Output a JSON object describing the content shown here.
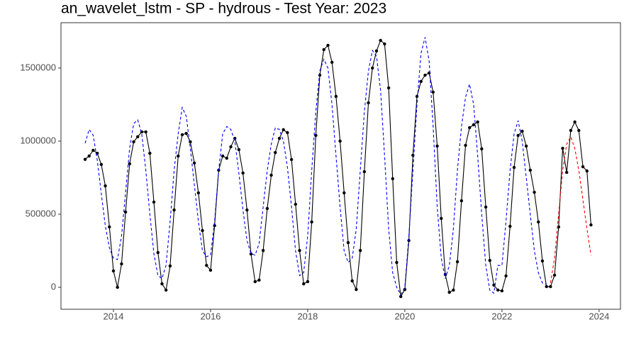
{
  "chart_data": {
    "type": "line",
    "title": "an_wavelet_lstm - SP - hydrous - Test Year: 2023",
    "xlim": [
      2012.92,
      2024.44
    ],
    "xticks": [
      2014,
      2016,
      2018,
      2020,
      2022,
      2024
    ],
    "ylim": [
      -150000,
      1810000
    ],
    "yticks": [
      0,
      500000,
      1000000,
      1500000
    ],
    "grid": false,
    "series": [
      {
        "color": "#000000",
        "dashed": false,
        "markers": true,
        "x": [
          2013.417,
          2013.5,
          2013.583,
          2013.667,
          2013.75,
          2013.833,
          2013.917,
          2014,
          2014.083,
          2014.167,
          2014.25,
          2014.333,
          2014.417,
          2014.5,
          2014.583,
          2014.667,
          2014.75,
          2014.833,
          2014.917,
          2015,
          2015.083,
          2015.167,
          2015.25,
          2015.333,
          2015.417,
          2015.5,
          2015.583,
          2015.667,
          2015.75,
          2015.833,
          2015.917,
          2016,
          2016.083,
          2016.167,
          2016.25,
          2016.333,
          2016.417,
          2016.5,
          2016.583,
          2016.667,
          2016.75,
          2016.833,
          2016.917,
          2017,
          2017.083,
          2017.167,
          2017.25,
          2017.333,
          2017.417,
          2017.5,
          2017.583,
          2017.667,
          2017.75,
          2017.833,
          2017.917,
          2018,
          2018.083,
          2018.167,
          2018.25,
          2018.333,
          2018.417,
          2018.5,
          2018.583,
          2018.667,
          2018.75,
          2018.833,
          2018.917,
          2019,
          2019.083,
          2019.167,
          2019.25,
          2019.333,
          2019.417,
          2019.5,
          2019.583,
          2019.667,
          2019.75,
          2019.833,
          2019.917,
          2020,
          2020.083,
          2020.167,
          2020.25,
          2020.333,
          2020.417,
          2020.5,
          2020.583,
          2020.667,
          2020.75,
          2020.833,
          2020.917,
          2021,
          2021.083,
          2021.167,
          2021.25,
          2021.333,
          2021.417,
          2021.5,
          2021.583,
          2021.667,
          2021.75,
          2021.833,
          2021.917,
          2022,
          2022.083,
          2022.167,
          2022.25,
          2022.333,
          2022.417,
          2022.5,
          2022.583,
          2022.667,
          2022.75,
          2022.833,
          2022.917,
          2023,
          2023.083,
          2023.167,
          2023.25,
          2023.333,
          2023.417,
          2023.5,
          2023.583,
          2023.667,
          2023.75,
          2023.833
        ],
        "values": [
          875000,
          898000,
          937000,
          917000,
          840000,
          694000,
          413000,
          112000,
          0,
          160000,
          515000,
          845000,
          995000,
          1030000,
          1063000,
          1063000,
          917000,
          583000,
          238000,
          24000,
          -19000,
          146000,
          529000,
          898000,
          1044000,
          1053000,
          995000,
          850000,
          646000,
          388000,
          150000,
          117000,
          422000,
          801000,
          898000,
          883000,
          961000,
          1019000,
          942000,
          782000,
          529000,
          228000,
          39000,
          49000,
          252000,
          539000,
          767000,
          922000,
          1019000,
          1078000,
          1058000,
          874000,
          568000,
          252000,
          24000,
          39000,
          447000,
          1039000,
          1451000,
          1626000,
          1655000,
          1539000,
          1306000,
          1000000,
          646000,
          306000,
          44000,
          -15000,
          252000,
          791000,
          1262000,
          1500000,
          1617000,
          1689000,
          1665000,
          1364000,
          743000,
          170000,
          -63000,
          -15000,
          320000,
          903000,
          1306000,
          1408000,
          1451000,
          1466000,
          1335000,
          966000,
          471000,
          87000,
          -34000,
          -19000,
          175000,
          592000,
          971000,
          1092000,
          1112000,
          1131000,
          947000,
          549000,
          184000,
          15000,
          -19000,
          -24000,
          78000,
          417000,
          820000,
          1039000,
          1068000,
          966000,
          801000,
          650000,
          447000,
          180000,
          5000,
          5000,
          83000,
          413000,
          951000,
          786000,
          1073000,
          1131000,
          1073000,
          825000,
          796000,
          427000
        ]
      },
      {
        "color": "#0000ff",
        "dashed": true,
        "markers": false,
        "x": [
          2013.417,
          2013.5,
          2013.583,
          2013.667,
          2013.75,
          2013.833,
          2013.917,
          2014,
          2014.083,
          2014.167,
          2014.25,
          2014.333,
          2014.417,
          2014.5,
          2014.583,
          2014.667,
          2014.75,
          2014.833,
          2014.917,
          2015,
          2015.083,
          2015.167,
          2015.25,
          2015.333,
          2015.417,
          2015.5,
          2015.583,
          2015.667,
          2015.75,
          2015.833,
          2015.917,
          2016,
          2016.083,
          2016.167,
          2016.25,
          2016.333,
          2016.417,
          2016.5,
          2016.583,
          2016.667,
          2016.75,
          2016.833,
          2016.917,
          2017,
          2017.083,
          2017.167,
          2017.25,
          2017.333,
          2017.417,
          2017.5,
          2017.583,
          2017.667,
          2017.75,
          2017.833,
          2017.917,
          2018,
          2018.083,
          2018.167,
          2018.25,
          2018.333,
          2018.417,
          2018.5,
          2018.583,
          2018.667,
          2018.75,
          2018.833,
          2018.917,
          2019,
          2019.083,
          2019.167,
          2019.25,
          2019.333,
          2019.417,
          2019.5,
          2019.583,
          2019.667,
          2019.75,
          2019.833,
          2019.917,
          2020,
          2020.083,
          2020.167,
          2020.25,
          2020.333,
          2020.417,
          2020.5,
          2020.583,
          2020.667,
          2020.75,
          2020.833,
          2020.917,
          2021,
          2021.083,
          2021.167,
          2021.25,
          2021.333,
          2021.417,
          2021.5,
          2021.583,
          2021.667,
          2021.75,
          2021.833,
          2021.917,
          2022,
          2022.083,
          2022.167,
          2022.25,
          2022.333,
          2022.417,
          2022.5,
          2022.583,
          2022.667,
          2022.75,
          2022.833,
          2022.917
        ],
        "values": [
          985000,
          1080000,
          1040000,
          870000,
          640000,
          420000,
          270000,
          200000,
          190000,
          350000,
          650000,
          950000,
          1120000,
          1145000,
          1050000,
          800000,
          500000,
          230000,
          80000,
          60000,
          150000,
          450000,
          800000,
          1050000,
          1230000,
          1170000,
          950000,
          700000,
          450000,
          250000,
          210000,
          220000,
          450000,
          800000,
          1050000,
          1100000,
          1080000,
          1000000,
          780000,
          530000,
          320000,
          230000,
          220000,
          300000,
          550000,
          800000,
          980000,
          1090000,
          1080000,
          1000000,
          820000,
          550000,
          250000,
          80000,
          100000,
          350000,
          800000,
          1200000,
          1480000,
          1560000,
          1500000,
          1250000,
          900000,
          550000,
          250000,
          170000,
          200000,
          400000,
          800000,
          1200000,
          1480000,
          1620000,
          1580000,
          1350000,
          900000,
          400000,
          100000,
          0,
          -50000,
          0,
          350000,
          800000,
          1250000,
          1600000,
          1710000,
          1550000,
          1100000,
          550000,
          200000,
          60000,
          150000,
          400000,
          800000,
          1100000,
          1300000,
          1390000,
          1250000,
          900000,
          500000,
          150000,
          -20000,
          -40000,
          150000,
          150000,
          450000,
          800000,
          1050000,
          1140000,
          1000000,
          750000,
          500000,
          250000,
          100000,
          30000,
          20000
        ]
      },
      {
        "color": "#ff0000",
        "dashed": true,
        "markers": false,
        "x": [
          2023,
          2023.083,
          2023.167,
          2023.25,
          2023.333,
          2023.417,
          2023.5,
          2023.583,
          2023.667,
          2023.75,
          2023.833
        ],
        "values": [
          30000,
          200000,
          500000,
          800000,
          980000,
          1030000,
          950000,
          800000,
          600000,
          400000,
          220000
        ]
      }
    ]
  }
}
